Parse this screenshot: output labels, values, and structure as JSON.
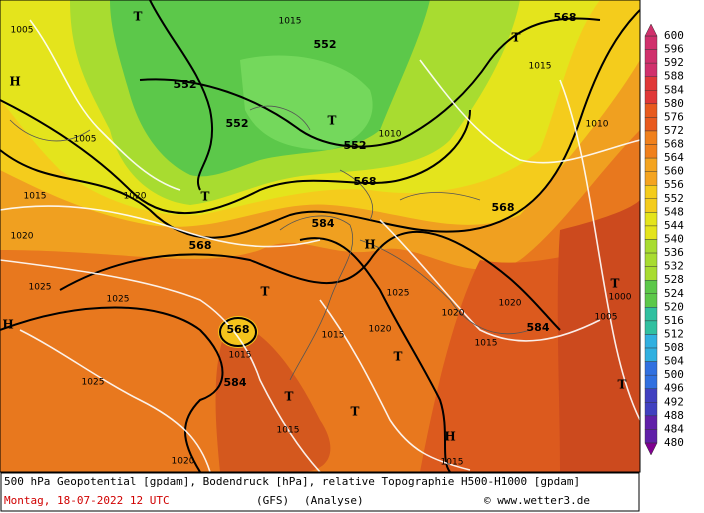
{
  "map": {
    "labels": [
      "568",
      "552",
      "552",
      "552",
      "552",
      "568",
      "568",
      "584",
      "568",
      "568",
      "584",
      "584",
      "T",
      "T",
      "T",
      "T",
      "T",
      "T",
      "T",
      "T",
      "T",
      "T",
      "H",
      "H",
      "H",
      "H",
      "1015",
      "1015",
      "1010",
      "1020",
      "1025",
      "1025",
      "1025",
      "1015",
      "1015",
      "1020",
      "1025",
      "1020",
      "1015",
      "1015",
      "1005",
      "1005",
      "1015",
      "1020",
      "1010",
      "1005",
      "1000",
      "1020",
      "1020",
      "1015"
    ]
  },
  "colorbar": {
    "labels": [
      600,
      596,
      592,
      588,
      584,
      580,
      576,
      572,
      568,
      564,
      560,
      556,
      552,
      548,
      544,
      540,
      536,
      532,
      528,
      524,
      520,
      516,
      512,
      508,
      504,
      500,
      496,
      492,
      488,
      484,
      480
    ]
  },
  "footer": {
    "line1": "500 hPa Geopotential [gpdam], Bodendruck [hPa], relative Topographie H500-H1000 [gpdam]",
    "date": "Montag, 18-07-2022  12 UTC",
    "model": "(GFS)",
    "run": "(Analyse)",
    "credit": "© www.wetter3.de"
  }
}
